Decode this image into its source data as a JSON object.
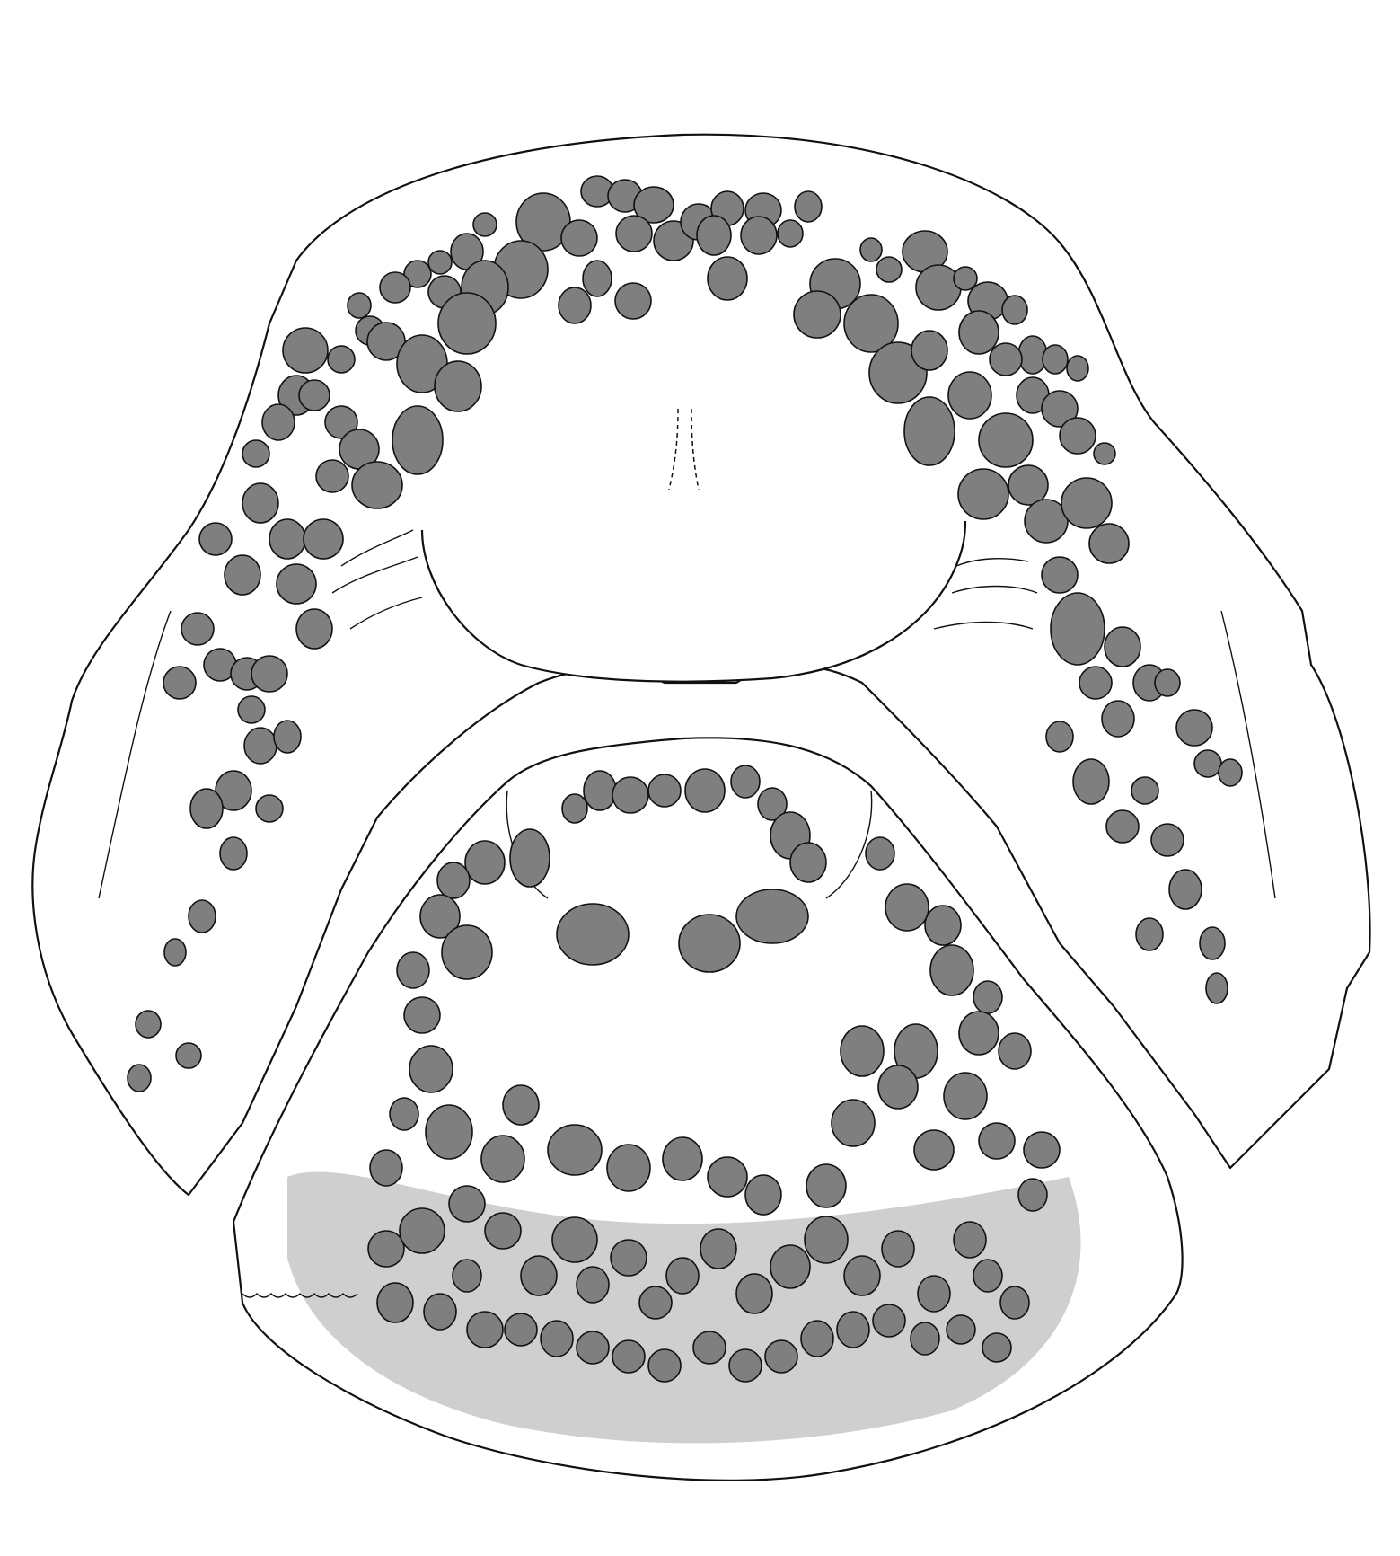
{
  "figure": {
    "description_labels": [],
    "colors": {
      "background": "#ffffff",
      "outline": "#111111",
      "tooth_fill": "#7f7f7f",
      "light_band": "#cfcfcf"
    },
    "upper_jaw": {
      "tooth_count_approx": 95
    },
    "lower_jaw": {
      "tooth_count_approx": 90
    }
  }
}
